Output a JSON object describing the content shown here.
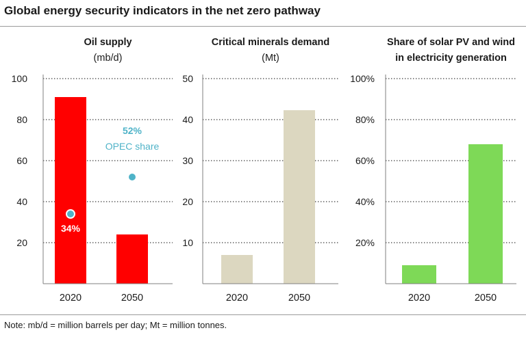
{
  "title": "Global energy security indicators in the net zero pathway",
  "note": "Note: mb/d = million barrels per day; Mt = million tonnes.",
  "colors": {
    "oil": "#ff0000",
    "minerals": "#dcd7c0",
    "renewables": "#7ed957",
    "opec_marker": "#4fb3c8",
    "axis": "#7f7f7f",
    "grid": "#595959"
  },
  "chart_data": [
    {
      "type": "bar",
      "title": "Oil supply",
      "subtitle": "(mb/d)",
      "categories": [
        "2020",
        "2050"
      ],
      "values": [
        91,
        24
      ],
      "ylim": [
        0,
        100
      ],
      "yticks": [
        20,
        40,
        60,
        80,
        100
      ],
      "ytick_labels": [
        "20",
        "40",
        "60",
        "80",
        "100"
      ],
      "grid": true,
      "color": "#ff0000",
      "overlay": {
        "type": "scatter",
        "points": [
          {
            "category": "2020",
            "y": 34,
            "label": "34%"
          },
          {
            "category": "2050",
            "y": 52,
            "label": "52%"
          }
        ],
        "annotation": "OPEC share",
        "color": "#4fb3c8"
      }
    },
    {
      "type": "bar",
      "title": "Critical minerals demand",
      "subtitle": "(Mt)",
      "categories": [
        "2020",
        "2050"
      ],
      "values": [
        7,
        42.3
      ],
      "ylim": [
        0,
        50
      ],
      "yticks": [
        10,
        20,
        30,
        40,
        50
      ],
      "ytick_labels": [
        "10",
        "20",
        "30",
        "40",
        "50"
      ],
      "grid": true,
      "color": "#dcd7c0"
    },
    {
      "type": "bar",
      "title": "Share of solar PV and wind",
      "subtitle": "in electricity generation",
      "categories": [
        "2020",
        "2050"
      ],
      "values": [
        9,
        68
      ],
      "ylim": [
        0,
        100
      ],
      "yticks": [
        20,
        40,
        60,
        80,
        100
      ],
      "ytick_labels": [
        "20%",
        "40%",
        "60%",
        "80%",
        "100%"
      ],
      "grid": true,
      "color": "#7ed957"
    }
  ]
}
